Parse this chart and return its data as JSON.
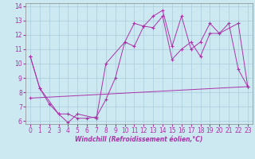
{
  "xlabel": "Windchill (Refroidissement éolien,°C)",
  "xlim": [
    -0.5,
    23.5
  ],
  "ylim": [
    5.8,
    14.2
  ],
  "xticks": [
    0,
    1,
    2,
    3,
    4,
    5,
    6,
    7,
    8,
    9,
    10,
    11,
    12,
    13,
    14,
    15,
    16,
    17,
    18,
    19,
    20,
    21,
    22,
    23
  ],
  "yticks": [
    6,
    7,
    8,
    9,
    10,
    11,
    12,
    13,
    14
  ],
  "bg_color": "#cce8f0",
  "grid_color": "#aaccdd",
  "line_color": "#aa33aa",
  "line1_x": [
    0,
    1,
    2,
    3,
    4,
    5,
    6,
    7,
    8,
    9,
    10,
    11,
    12,
    13,
    14,
    15,
    16,
    17,
    18,
    19,
    20,
    21,
    22,
    23
  ],
  "line1_y": [
    10.5,
    8.3,
    7.2,
    6.5,
    6.5,
    6.2,
    6.2,
    6.3,
    7.5,
    9.0,
    11.5,
    12.8,
    12.6,
    12.5,
    13.3,
    10.3,
    11.0,
    11.5,
    10.5,
    12.1,
    12.1,
    12.8,
    9.6,
    8.4
  ],
  "line2_x": [
    0,
    1,
    3,
    4,
    5,
    7,
    8,
    10,
    11,
    12,
    13,
    14,
    15,
    16,
    17,
    18,
    19,
    20,
    22,
    23
  ],
  "line2_y": [
    10.5,
    8.3,
    6.5,
    5.9,
    6.5,
    6.2,
    10.0,
    11.5,
    11.2,
    12.6,
    13.3,
    13.7,
    11.2,
    13.3,
    11.0,
    11.5,
    12.8,
    12.1,
    12.8,
    8.4
  ],
  "line3_x": [
    0,
    23
  ],
  "line3_y": [
    7.6,
    8.4
  ],
  "tick_fontsize": 5.5,
  "xlabel_fontsize": 5.5
}
